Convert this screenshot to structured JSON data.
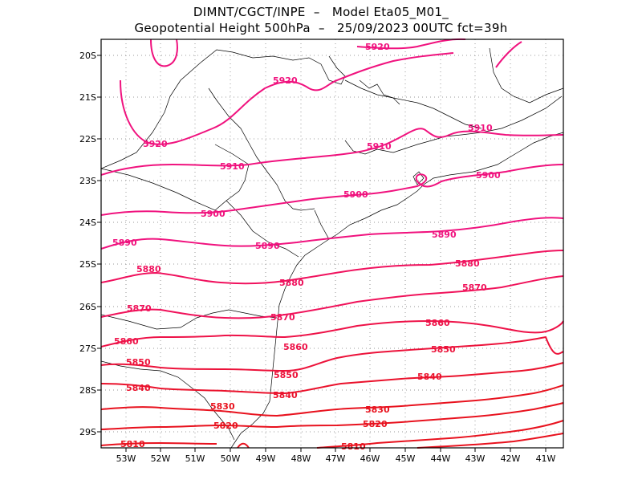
{
  "title": {
    "line1": "DIMNT/CGCT/INPE  –   Model Eta05_M01_",
    "line2": "Geopotential Height 500hPa  –   25/09/2023 00UTC fct=39h"
  },
  "colors": {
    "high": "#f0127e",
    "mid": "#f0125a",
    "low": "#e8121e",
    "coast": "#000000",
    "grid": "#9a9a9a"
  },
  "axes": {
    "lon_ticks": [
      "53W",
      "52W",
      "51W",
      "50W",
      "49W",
      "48W",
      "47W",
      "46W",
      "45W",
      "44W",
      "43W",
      "42W",
      "41W"
    ],
    "lat_ticks": [
      "20S",
      "21S",
      "22S",
      "23S",
      "24S",
      "25S",
      "26S",
      "27S",
      "28S",
      "29S"
    ]
  },
  "contours": [
    {
      "level": "5920",
      "labels": [
        "5920",
        "5920",
        "5920"
      ]
    },
    {
      "level": "5910",
      "labels": [
        "5910",
        "5910",
        "5910"
      ]
    },
    {
      "level": "5900",
      "labels": [
        "5900",
        "5900",
        "5900"
      ]
    },
    {
      "level": "5890",
      "labels": [
        "5890",
        "5890",
        "5890"
      ]
    },
    {
      "level": "5880",
      "labels": [
        "5880",
        "5880",
        "5880"
      ]
    },
    {
      "level": "5870",
      "labels": [
        "5870",
        "5870",
        "5870"
      ]
    },
    {
      "level": "5860",
      "labels": [
        "5860",
        "5860",
        "5860"
      ]
    },
    {
      "level": "5850",
      "labels": [
        "5850",
        "5850",
        "5850"
      ]
    },
    {
      "level": "5840",
      "labels": [
        "5840",
        "5840",
        "5840"
      ]
    },
    {
      "level": "5830",
      "labels": [
        "5830",
        "5830"
      ]
    },
    {
      "level": "5820",
      "labels": [
        "5820",
        "5820"
      ]
    },
    {
      "level": "5810",
      "labels": [
        "5810",
        "5810"
      ]
    }
  ]
}
